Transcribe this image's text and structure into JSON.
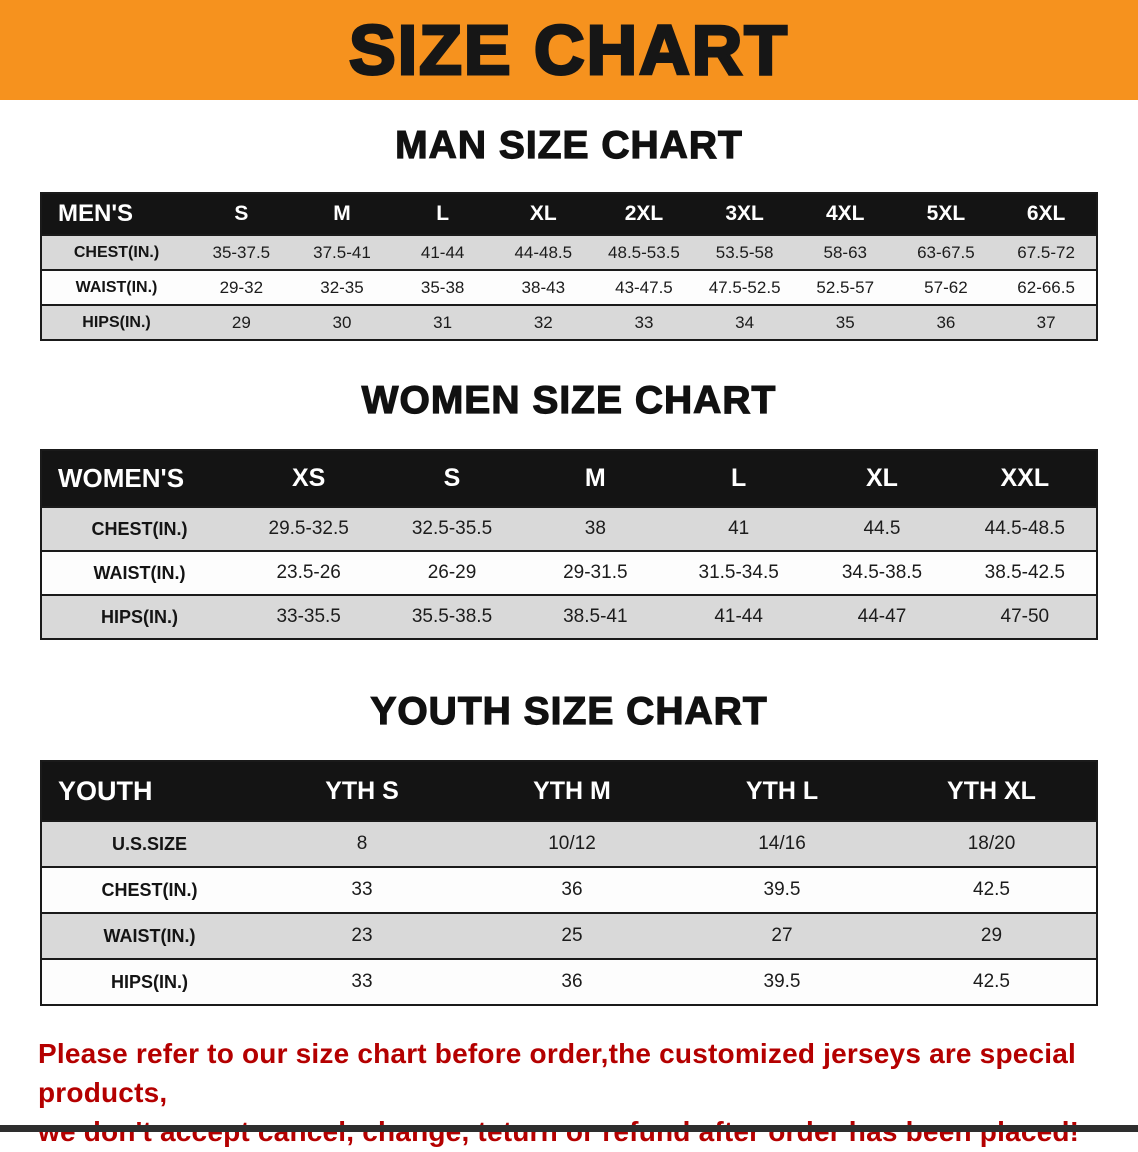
{
  "banner": {
    "title": "SIZE CHART"
  },
  "sections": [
    {
      "heading": "MAN SIZE CHART",
      "table": {
        "header": [
          "MEN'S",
          "S",
          "M",
          "L",
          "XL",
          "2XL",
          "3XL",
          "4XL",
          "5XL",
          "6XL"
        ],
        "rows": [
          {
            "label": "CHEST(IN.)",
            "values": [
              "35-37.5",
              "37.5-41",
              "41-44",
              "44-48.5",
              "48.5-53.5",
              "53.5-58",
              "58-63",
              "63-67.5",
              "67.5-72"
            ]
          },
          {
            "label": "WAIST(IN.)",
            "values": [
              "29-32",
              "32-35",
              "35-38",
              "38-43",
              "43-47.5",
              "47.5-52.5",
              "52.5-57",
              "57-62",
              "62-66.5"
            ]
          },
          {
            "label": "HIPS(IN.)",
            "values": [
              "29",
              "30",
              "31",
              "32",
              "33",
              "34",
              "35",
              "36",
              "37"
            ]
          }
        ]
      }
    },
    {
      "heading": "WOMEN SIZE CHART",
      "table": {
        "header": [
          "WOMEN'S",
          "XS",
          "S",
          "M",
          "L",
          "XL",
          "XXL"
        ],
        "rows": [
          {
            "label": "CHEST(IN.)",
            "values": [
              "29.5-32.5",
              "32.5-35.5",
              "38",
              "41",
              "44.5",
              "44.5-48.5"
            ]
          },
          {
            "label": "WAIST(IN.)",
            "values": [
              "23.5-26",
              "26-29",
              "29-31.5",
              "31.5-34.5",
              "34.5-38.5",
              "38.5-42.5"
            ]
          },
          {
            "label": "HIPS(IN.)",
            "values": [
              "33-35.5",
              "35.5-38.5",
              "38.5-41",
              "41-44",
              "44-47",
              "47-50"
            ]
          }
        ]
      }
    },
    {
      "heading": "YOUTH SIZE CHART",
      "table": {
        "header": [
          "YOUTH",
          "YTH S",
          "YTH M",
          "YTH L",
          "YTH XL"
        ],
        "rows": [
          {
            "label": "U.S.SIZE",
            "values": [
              "8",
              "10/12",
              "14/16",
              "18/20"
            ]
          },
          {
            "label": "CHEST(IN.)",
            "values": [
              "33",
              "36",
              "39.5",
              "42.5"
            ]
          },
          {
            "label": "WAIST(IN.)",
            "values": [
              "23",
              "25",
              "27",
              "29"
            ]
          },
          {
            "label": "HIPS(IN.)",
            "values": [
              "33",
              "36",
              "39.5",
              "42.5"
            ]
          }
        ]
      }
    }
  ],
  "footer": {
    "line1": "Please refer to our size chart before order,the customized jerseys are special products,",
    "line2": "we don't accept cancel, change, teturn or refund after order has been placed!"
  },
  "colors": {
    "banner_orange": "#F6921E",
    "table_header_black": "#141414",
    "row_gray": "#D9D9D9",
    "notice_red": "#B40000"
  }
}
